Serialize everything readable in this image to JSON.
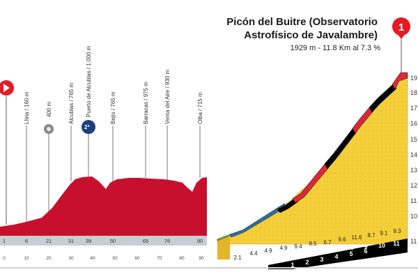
{
  "climb": {
    "title_line1": "Picón del Buitre (Observatorio",
    "title_line2": "Astrofísico de Javalambre)",
    "stats": "1929 m - 11.8 Km al 7.3 %",
    "category_badge": "1",
    "altitude_ticks": [
      "19",
      "18",
      "17",
      "16",
      "15",
      "14",
      "13",
      "12",
      "11",
      "10",
      "11"
    ],
    "segment_grades": [
      "2.1",
      "4.4",
      "4.9",
      "4.9",
      "9.4",
      "8.5",
      "6.7",
      "9.6",
      "11.6",
      "8.7",
      "9.1",
      "9.3"
    ],
    "km_markers": [
      "1",
      "2",
      "3",
      "4",
      "5",
      "6",
      "7",
      "8",
      "9",
      "10",
      "11"
    ],
    "grade_colors": {
      "easy": "#8dc63f",
      "moderate": "#2a6fb3",
      "steep": "#000000",
      "very_steep": "#e0263a",
      "ground": "#f4cf3a"
    }
  },
  "stage": {
    "start_icon": "start-flag-icon",
    "towns": [
      {
        "label": "Llíria / 160 m"
      },
      {
        "label": "400 m"
      },
      {
        "label": "Alcublas / 765 m"
      },
      {
        "label": "Puerto de Alcublas / 1.000 m"
      },
      {
        "label": "Bejís / 765 m"
      },
      {
        "label": "Barracas / 975 m"
      },
      {
        "label": "Venta del Aire / 930 m"
      },
      {
        "label": "Olba / 715 m"
      }
    ],
    "sprint_badge": "",
    "mountain_badge": "2ª",
    "km_top": [
      "1",
      "6",
      "21",
      "31",
      "39",
      "50",
      "65",
      "76",
      "90"
    ],
    "km_bottom": [
      "0",
      "10",
      "20",
      "30",
      "40",
      "50",
      "60",
      "70",
      "80",
      "90"
    ],
    "profile_color": "#c8102e",
    "base_color": "#c9ccd1"
  }
}
